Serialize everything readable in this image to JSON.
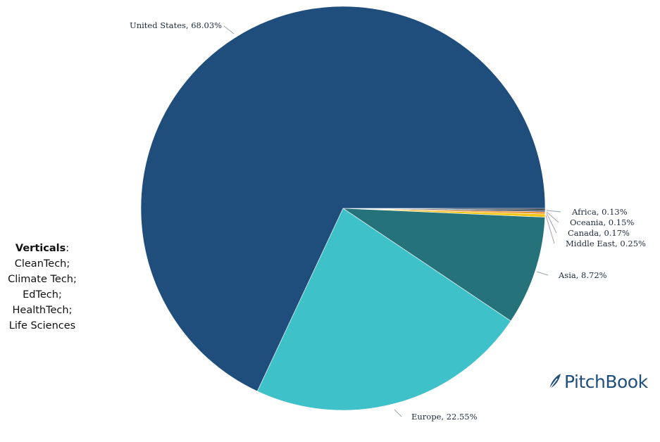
{
  "verticals": {
    "heading": "Verticals",
    "items": [
      "CleanTech;",
      "Climate Tech;",
      "EdTech;",
      "HealthTech;",
      "Life Sciences"
    ]
  },
  "brand": {
    "name": "PitchBook",
    "color": "#1f4e7c"
  },
  "chart_data": {
    "type": "pie",
    "title": "",
    "slices": [
      {
        "label": "United States",
        "value": 68.03,
        "display": "United States, 68.03%",
        "color": "#1f4e7c"
      },
      {
        "label": "Europe",
        "value": 22.55,
        "display": "Europe, 22.55%",
        "color": "#3fc1c9"
      },
      {
        "label": "Asia",
        "value": 8.72,
        "display": "Asia, 8.72%",
        "color": "#26727a"
      },
      {
        "label": "Middle East",
        "value": 0.25,
        "display": "Middle East, 0.25%",
        "color": "#f3c613"
      },
      {
        "label": "Canada",
        "value": 0.17,
        "display": "Canada, 0.17%",
        "color": "#f28e2b"
      },
      {
        "label": "Oceania",
        "value": 0.15,
        "display": "Oceania, 0.15%",
        "color": "#3a4a5c"
      },
      {
        "label": "Africa",
        "value": 0.13,
        "display": "Africa, 0.13%",
        "color": "#1b2433"
      }
    ]
  }
}
